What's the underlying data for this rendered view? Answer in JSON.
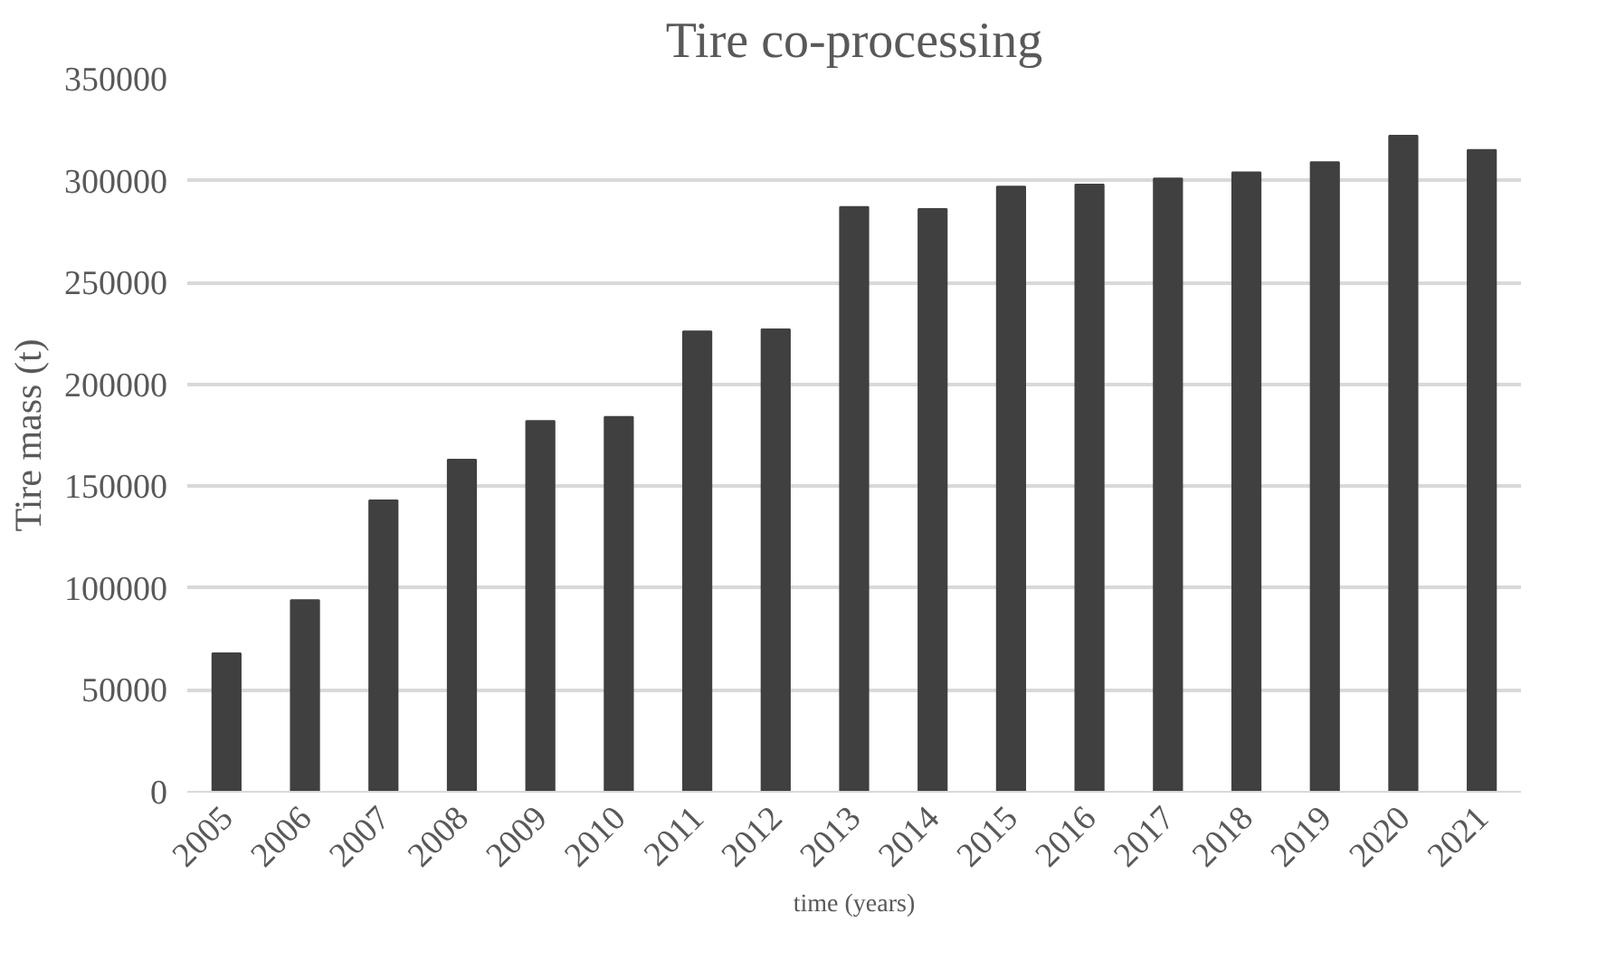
{
  "chart_data": {
    "type": "bar",
    "title": "Tire co-processing",
    "xlabel": "time (years)",
    "ylabel": "Tire mass (t)",
    "categories": [
      "2005",
      "2006",
      "2007",
      "2008",
      "2009",
      "2010",
      "2011",
      "2012",
      "2013",
      "2014",
      "2015",
      "2016",
      "2017",
      "2018",
      "2019",
      "2020",
      "2021"
    ],
    "values": [
      68000,
      94000,
      143000,
      163000,
      182000,
      184000,
      226000,
      227000,
      287000,
      286000,
      297000,
      298000,
      301000,
      304000,
      309000,
      322000,
      315000
    ],
    "color": "#404040",
    "ylim": [
      0,
      350000
    ],
    "yticks": [
      0,
      50000,
      100000,
      150000,
      200000,
      250000,
      300000,
      350000
    ],
    "grid": "y"
  }
}
